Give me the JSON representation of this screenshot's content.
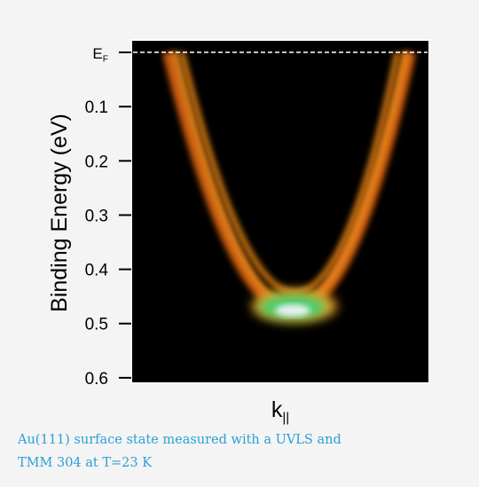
{
  "chart_data": {
    "type": "image",
    "ylabel": "Binding Energy (eV)",
    "xlabel": "k||",
    "ylim": [
      0.61,
      -0.023
    ],
    "yticks": [
      {
        "value": 0,
        "label": "EF"
      },
      0.1,
      0.2,
      0.3,
      0.4,
      0.5,
      0.6
    ],
    "hline": 0,
    "caption": [
      "Au(111) surface state measured with a UVLS and",
      "TMM 304 at T=23 K"
    ]
  }
}
